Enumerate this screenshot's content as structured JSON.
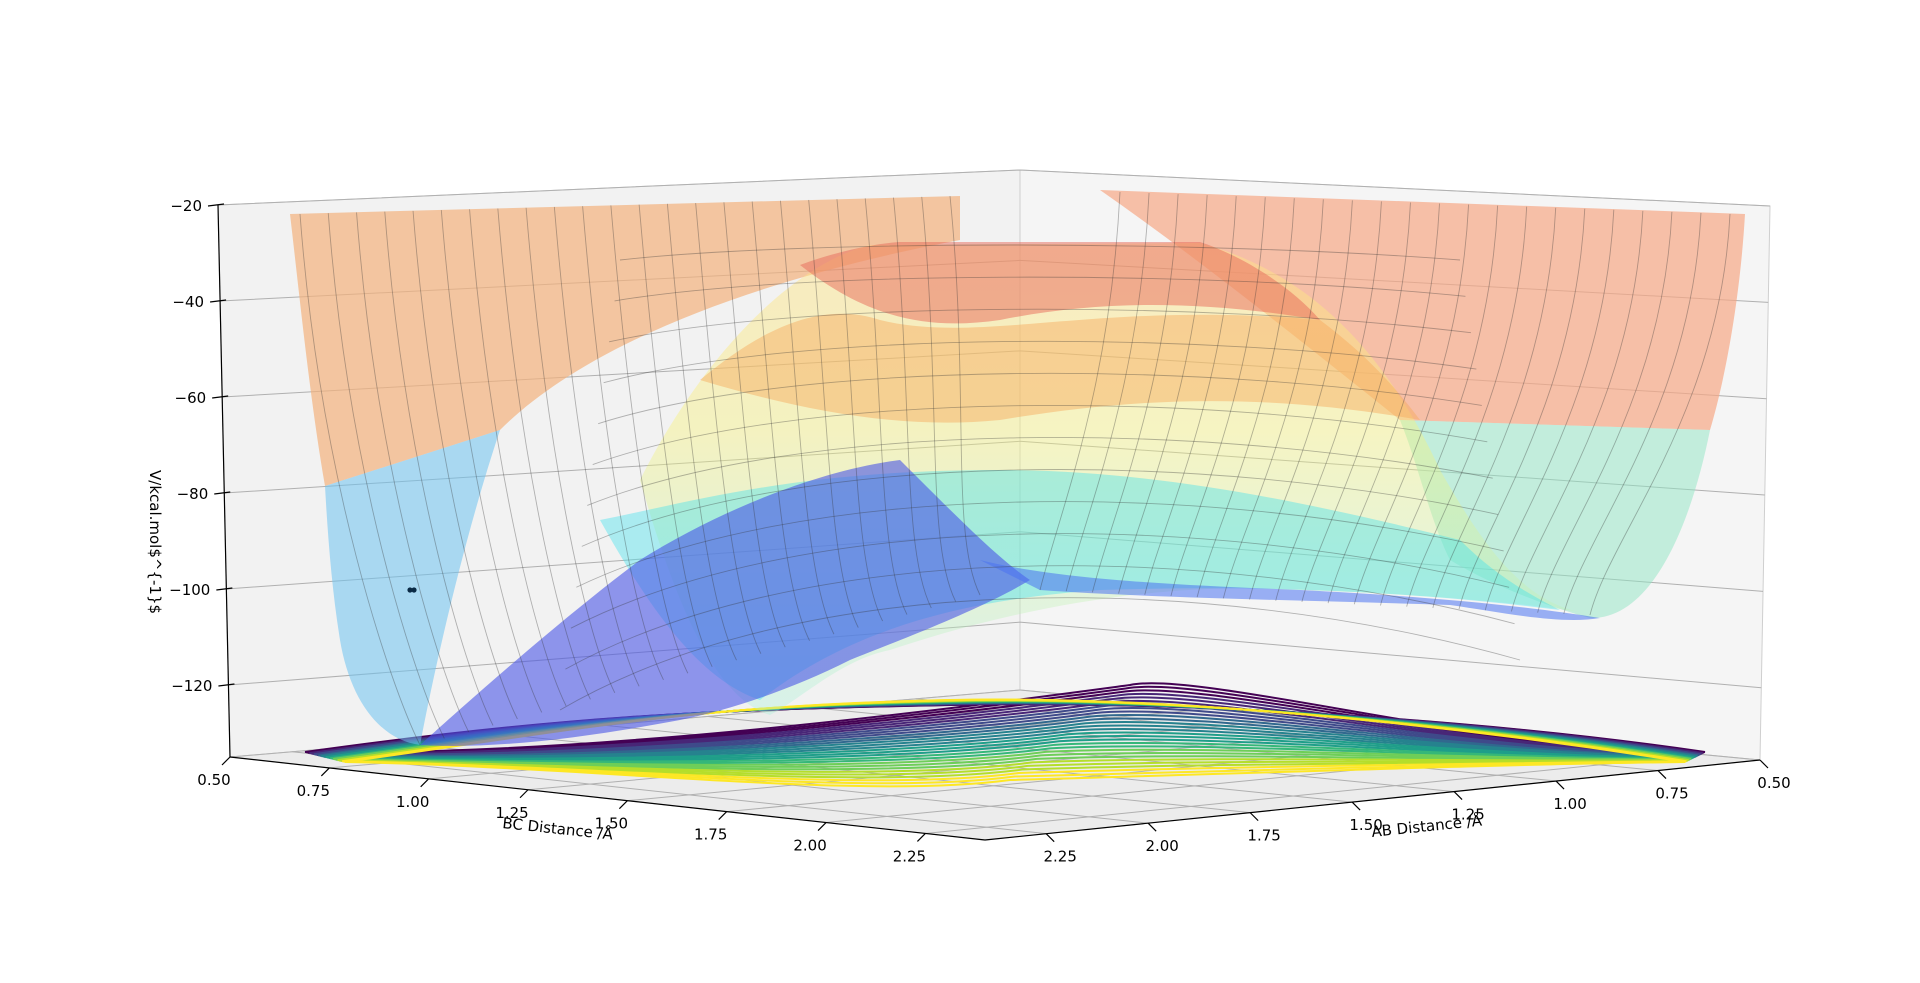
{
  "chart_data": {
    "type": "surface3d",
    "zlabel": "V/kcal.mol$^{-1}$",
    "xlabel": "AB Distance /Å",
    "ylabel": "BC Distance /Å",
    "z_ticks": [
      "−20",
      "−40",
      "−60",
      "−80",
      "−100",
      "−120"
    ],
    "z_tick_values": [
      -20,
      -40,
      -60,
      -80,
      -100,
      -120
    ],
    "bc_ticks": [
      "0.50",
      "0.75",
      "1.00",
      "1.25",
      "1.50",
      "1.75",
      "2.00",
      "2.25"
    ],
    "ab_ticks": [
      "0.50",
      "0.75",
      "1.00",
      "1.25",
      "1.50",
      "1.75",
      "2.00",
      "2.25"
    ],
    "tick_values": [
      0.5,
      0.75,
      1.0,
      1.25,
      1.5,
      1.75,
      2.0,
      2.25
    ],
    "xlim": [
      0.5,
      2.4
    ],
    "ylim": [
      0.5,
      2.4
    ],
    "zlim": [
      -135,
      -20
    ],
    "grid": true,
    "surface_colormap": "jet",
    "contour_colormap": "viridis",
    "trajectory_point": {
      "ab": 2.3,
      "bc": 0.74,
      "v": -100
    }
  }
}
